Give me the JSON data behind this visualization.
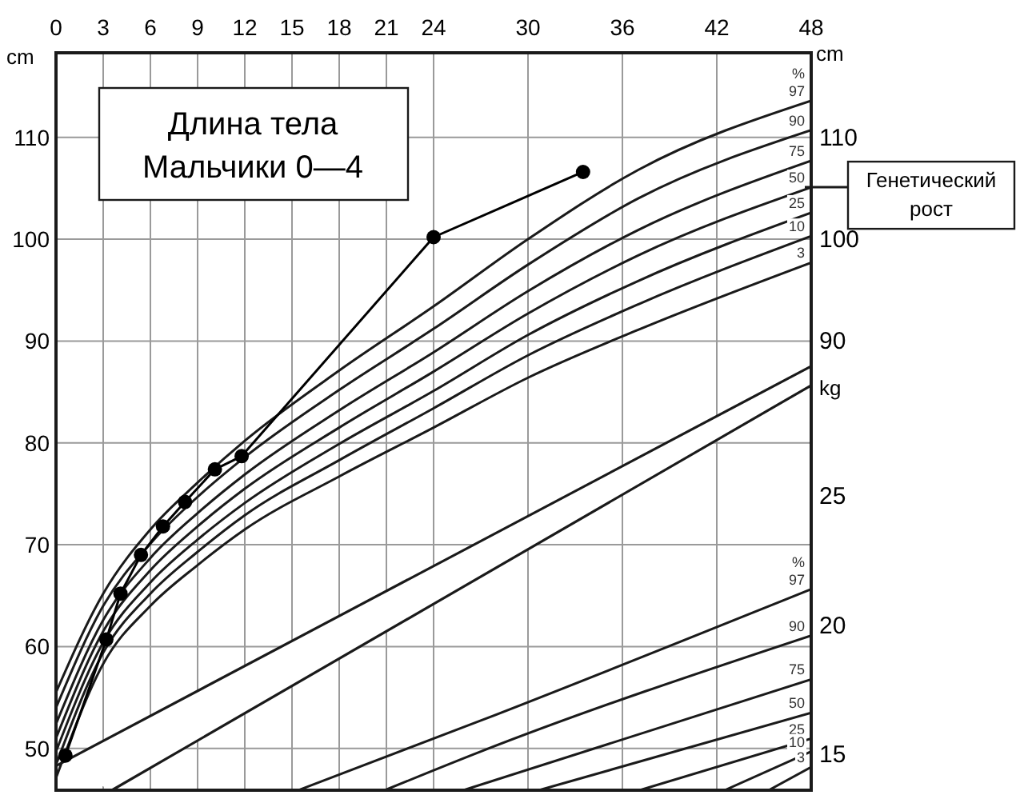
{
  "chart_data": {
    "type": "line",
    "title": "Длина тела",
    "subtitle": "Мальчики 0—4",
    "ylabel": "cm",
    "y2label": "kg",
    "y3label": "cm",
    "xlim": [
      0,
      48
    ],
    "xticks": [
      0,
      3,
      6,
      9,
      12,
      15,
      18,
      21,
      24,
      30,
      36,
      42,
      48
    ],
    "ylim": [
      45.9,
      118.3
    ],
    "yticks": [
      50,
      60,
      70,
      80,
      90,
      100,
      110
    ],
    "y2lim": [
      13.6,
      42.2
    ],
    "y2ticks": [
      15,
      20,
      25
    ],
    "y3lim": [
      45.9,
      118.3
    ],
    "y3ticks": [
      90,
      100,
      110
    ],
    "grid": true,
    "legend": "right",
    "marker": "none",
    "line_style": "solid",
    "x": [
      0,
      3,
      6,
      9,
      12,
      18,
      24,
      30,
      37,
      48
    ],
    "series": [
      {
        "name": "97",
        "color": "#1a1a1a",
        "values": [
          55.5,
          65.2,
          71.5,
          76.1,
          80.2,
          87.1,
          93.4,
          100.0,
          106.8,
          113.6
        ]
      },
      {
        "name": "90",
        "color": "#1a1a1a",
        "values": [
          54.0,
          64.0,
          70.1,
          74.7,
          78.6,
          85.2,
          91.2,
          97.5,
          104.0,
          110.7
        ]
      },
      {
        "name": "75",
        "color": "#1a1a1a",
        "values": [
          52.4,
          62.6,
          68.7,
          73.1,
          76.9,
          83.2,
          88.9,
          94.9,
          100.9,
          107.7
        ]
      },
      {
        "name": "50",
        "color": "#1a1a1a",
        "values": [
          51.0,
          61.5,
          67.5,
          71.8,
          75.5,
          81.5,
          87.0,
          92.7,
          98.4,
          105.1
        ]
      },
      {
        "name": "25",
        "color": "#1a1a1a",
        "values": [
          49.7,
          60.4,
          66.3,
          70.5,
          74.1,
          79.9,
          85.1,
          90.6,
          95.9,
          102.6
        ]
      },
      {
        "name": "10",
        "color": "#1a1a1a",
        "values": [
          48.4,
          59.4,
          65.2,
          69.3,
          72.9,
          78.3,
          83.4,
          88.6,
          93.6,
          100.3
        ]
      },
      {
        "name": "3",
        "color": "#1a1a1a",
        "values": [
          47.1,
          58.3,
          64.0,
          68.0,
          71.5,
          76.7,
          81.5,
          86.4,
          91.1,
          97.7
        ]
      },
      {
        "name": "97",
        "color": "#1a1a1a",
        "axis": "y2",
        "x": [
          15.4,
          27,
          48
        ],
        "values": [
          13.6,
          16.3,
          21.4
        ]
      },
      {
        "name": "90",
        "color": "#1a1a1a",
        "axis": "y2",
        "x": [
          20.9,
          27,
          48
        ],
        "values": [
          13.6,
          15.1,
          19.6
        ]
      },
      {
        "name": "75",
        "color": "#1a1a1a",
        "axis": "y2",
        "x": [
          25.9,
          48
        ],
        "values": [
          13.6,
          17.9
        ]
      },
      {
        "name": "50",
        "color": "#1a1a1a",
        "axis": "y2",
        "x": [
          30.7,
          48
        ],
        "values": [
          13.6,
          16.6
        ]
      },
      {
        "name": "25",
        "color": "#1a1a1a",
        "axis": "y2",
        "x": [
          37.1,
          48
        ],
        "values": [
          13.6,
          15.6
        ]
      },
      {
        "name": "10",
        "color": "#1a1a1a",
        "axis": "y2",
        "x": [
          42.5,
          48
        ],
        "values": [
          13.6,
          15.1
        ]
      },
      {
        "name": "3",
        "color": "#1a1a1a",
        "axis": "y2",
        "x": [
          45.3,
          48
        ],
        "values": [
          13.6,
          14.5
        ]
      },
      {
        "color": "#000000",
        "marker": "circle",
        "x": [
          0.6,
          3.2,
          4.1,
          5.4,
          6.8,
          8.2,
          10.1,
          11.8,
          24,
          33.5
        ],
        "values": [
          49.3,
          60.7,
          65.2,
          69.0,
          71.8,
          74.2,
          77.4,
          78.7,
          100.2,
          106.6
        ]
      }
    ],
    "annotations": [
      "%",
      "%",
      {
        "text": "Генетический рост",
        "x": 48,
        "y": 105.1
      }
    ]
  }
}
